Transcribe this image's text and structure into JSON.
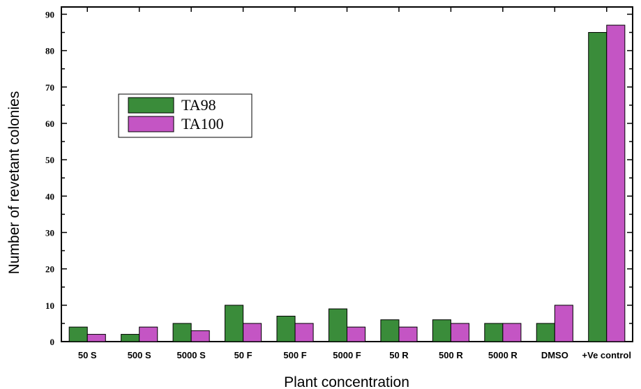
{
  "chart_data": {
    "type": "bar",
    "xlabel": "Plant concentration",
    "ylabel": "Number of revetant colonies",
    "ylim": [
      0,
      92
    ],
    "yticks": [
      0,
      10,
      20,
      30,
      40,
      50,
      60,
      70,
      80,
      90
    ],
    "grid": false,
    "legend_position": "upper-left",
    "categories": [
      "50 S",
      "500 S",
      "5000 S",
      "50 F",
      "500 F",
      "5000 F",
      "50 R",
      "500 R",
      "5000 R",
      "DMSO",
      "+Ve control"
    ],
    "series": [
      {
        "name": "TA98",
        "color": "#3a8c3a",
        "values": [
          4,
          2,
          5,
          10,
          7,
          9,
          6,
          6,
          5,
          5,
          85
        ]
      },
      {
        "name": "TA100",
        "color": "#c455c4",
        "values": [
          2,
          4,
          3,
          5,
          5,
          4,
          4,
          5,
          5,
          10,
          87
        ]
      }
    ]
  }
}
